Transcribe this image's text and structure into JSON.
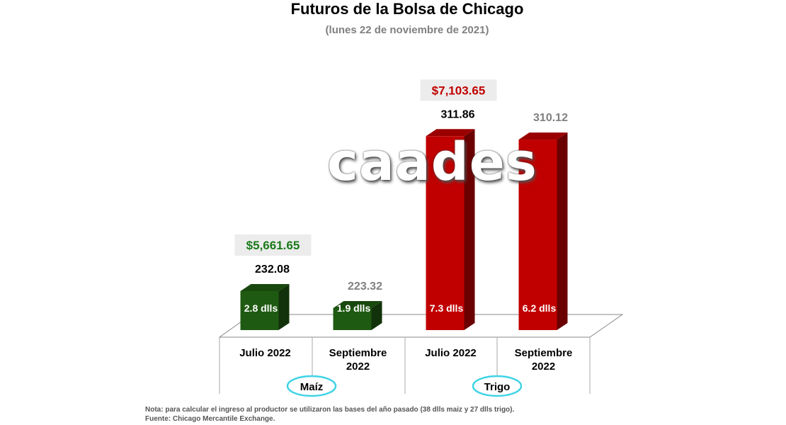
{
  "title": "Futuros de la Bolsa de Chicago",
  "subtitle": "(lunes 22 de noviembre de 2021)",
  "watermark": "caades",
  "note": "Nota: para calcular el ingreso al productor se utilizaron las bases del año pasado (38 dlls maiz y 27 dlls trigo).",
  "source": "Fuente: Chicago Mercantile Exchange.",
  "colors": {
    "maiz": "#1f5a12",
    "trigo": "#c00000",
    "maiz_price": "#1a7a1a",
    "trigo_price": "#c00000",
    "group_badge_border": "#3fd3e6"
  },
  "chart_data": {
    "type": "bar",
    "title": "Futuros de la Bolsa de Chicago",
    "subtitle": "(lunes 22 de noviembre de 2021)",
    "categories": [
      "Julio 2022",
      "Septiembre 2022",
      "Julio 2022",
      "Septiembre 2022"
    ],
    "category_lines": [
      [
        "Julio 2022"
      ],
      [
        "Septiembre",
        "2022"
      ],
      [
        "Julio 2022"
      ],
      [
        "Septiembre",
        "2022"
      ]
    ],
    "groups": [
      {
        "name": "Maíz",
        "indices": [
          0,
          1
        ]
      },
      {
        "name": "Trigo",
        "indices": [
          2,
          3
        ]
      }
    ],
    "values": [
      232.08,
      223.32,
      311.86,
      310.12
    ],
    "value_labels": [
      "232.08",
      "223.32",
      "311.86",
      "310.12"
    ],
    "value_label_colors": [
      "#000000",
      "#808080",
      "#000000",
      "#808080"
    ],
    "bar_labels": [
      "2.8 dlls",
      "1.9 dlls",
      "7.3 dlls",
      "6.2 dlls"
    ],
    "bar_colors": [
      "#1f5a12",
      "#1f5a12",
      "#c00000",
      "#c00000"
    ],
    "price_labels": [
      {
        "index": 0,
        "text": "$5,661.65",
        "color": "#1a7a1a"
      },
      {
        "index": 2,
        "text": "$7,103.65",
        "color": "#c00000"
      }
    ],
    "ylim": [
      212,
      320
    ],
    "grid": false,
    "legend": "none"
  }
}
